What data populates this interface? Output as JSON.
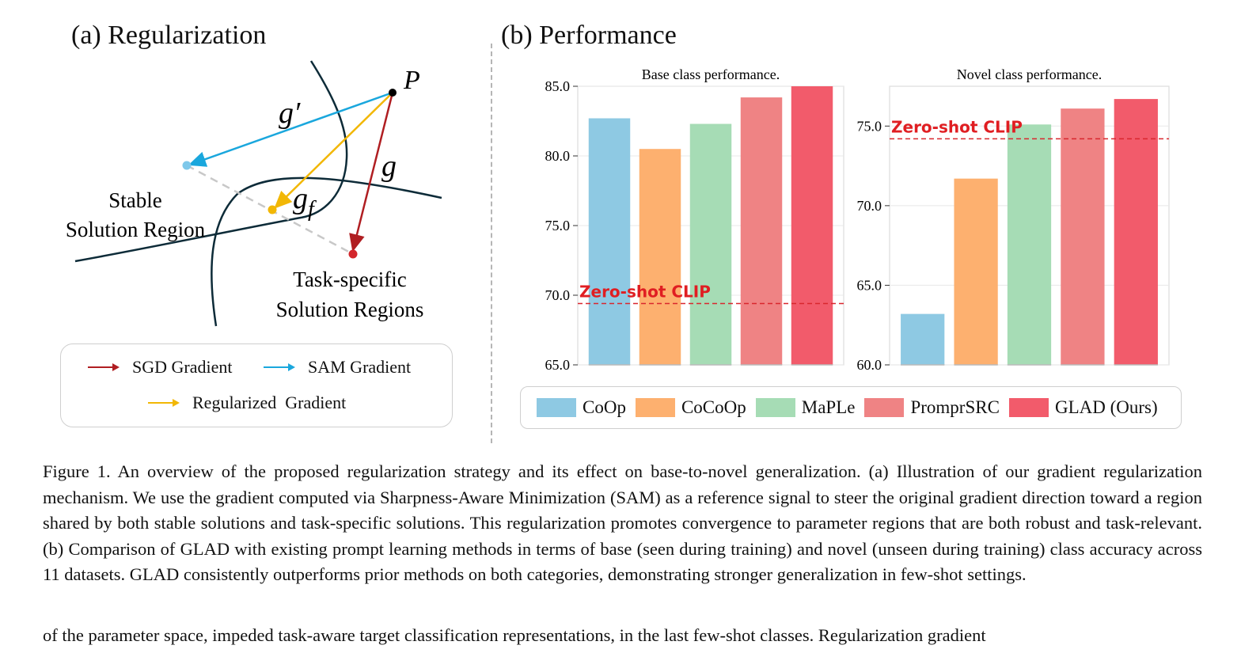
{
  "panel_a": {
    "title": "(a) Regularization",
    "point_label": "P",
    "g_prime": "g′",
    "g": "g",
    "g_f_main": "g",
    "g_f_sub": "f",
    "stable_line1": "Stable",
    "stable_line2": "Solution Region",
    "task_line1": "Task-specific",
    "task_line2": "Solution Regions",
    "colors": {
      "sgd": "#b01e22",
      "sam": "#1aa7dd",
      "regularized": "#f2b705",
      "curve": "#0d2b38"
    },
    "legend": {
      "sgd": "SGD Gradient",
      "sam": "SAM Gradient",
      "regularized": "Regularized  Gradient"
    }
  },
  "panel_b": {
    "title": "(b) Performance"
  },
  "chart_data": [
    {
      "type": "bar",
      "title": "Base class performance.",
      "categories": [
        "CoOp",
        "CoCoOp",
        "MaPLe",
        "PromprSRC",
        "GLAD (Ours)"
      ],
      "values": [
        82.7,
        80.5,
        82.3,
        84.2,
        85.0
      ],
      "ylim": [
        65.0,
        85.0
      ],
      "yticks": [
        "65.0",
        "70.0",
        "75.0",
        "80.0",
        "85.0"
      ],
      "reference_line": {
        "label": "Zero-shot CLIP",
        "value": 69.4
      },
      "grid": true
    },
    {
      "type": "bar",
      "title": "Novel class performance.",
      "categories": [
        "CoOp",
        "CoCoOp",
        "MaPLe",
        "PromprSRC",
        "GLAD (Ours)"
      ],
      "values": [
        63.2,
        71.7,
        75.1,
        76.1,
        76.7
      ],
      "ylim": [
        60.0,
        77.5
      ],
      "yticks": [
        "60.0",
        "65.0",
        "70.0",
        "75.0"
      ],
      "reference_line": {
        "label": "Zero-shot CLIP",
        "value": 74.2
      },
      "grid": true
    }
  ],
  "series_colors": [
    "#8ec9e3",
    "#fdb06f",
    "#a6dcb5",
    "#ef8384",
    "#f25b6b"
  ],
  "legend_b": [
    "CoOp",
    "CoCoOp",
    "MaPLe",
    "PromprSRC",
    "GLAD (Ours)"
  ],
  "caption": "Figure 1.  An overview of the proposed regularization strategy and its effect on base-to-novel generalization.  (a) Illustration of our gradient regularization mechanism. We use the gradient computed via Sharpness-Aware Minimization (SAM) as a reference signal to steer the original gradient direction toward a region shared by both stable solutions and task-specific solutions.  This regularization promotes convergence to parameter regions that are both robust and task-relevant. (b) Comparison of GLAD with existing prompt learning methods in terms of base (seen during training) and novel (unseen during training) class accuracy across 11 datasets. GLAD consistently outperforms prior methods on both categories, demonstrating stronger generalization in few-shot settings.",
  "next_line": "of the parameter space, impeded task-aware target classification representations, in the last few-shot classes. Regularization gradient"
}
